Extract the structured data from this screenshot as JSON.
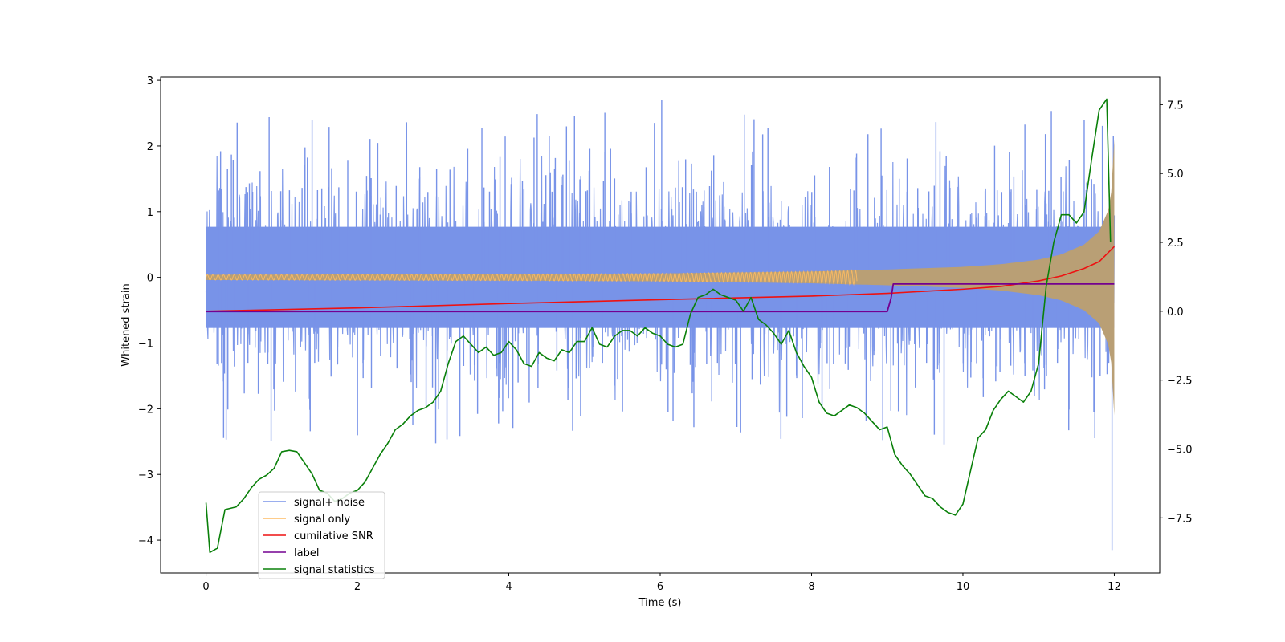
{
  "chart_data": {
    "type": "line",
    "title": "",
    "xlabel": "Time (s)",
    "ylabel": "Whitened strain",
    "ylabel_right": "",
    "xlim": [
      -0.6,
      12.6
    ],
    "ylim": [
      -4.5,
      3.05
    ],
    "ylim_right": [
      -9.5,
      8.5
    ],
    "x_ticks": [
      0,
      2,
      4,
      6,
      8,
      10,
      12
    ],
    "x_tick_labels": [
      "0",
      "2",
      "4",
      "6",
      "8",
      "10",
      "12"
    ],
    "y_ticks": [
      3,
      2,
      1,
      0,
      -1,
      -2,
      -3,
      -4
    ],
    "y_tick_labels": [
      "3",
      "2",
      "1",
      "0",
      "−1",
      "−2",
      "−3",
      "−4"
    ],
    "y2_ticks": [
      7.5,
      5.0,
      2.5,
      0.0,
      -2.5,
      -5.0,
      -7.5
    ],
    "y2_tick_labels": [
      "7.5",
      "5.0",
      "2.5",
      "0.0",
      "−2.5",
      "−5.0",
      "−7.5"
    ],
    "grid": false,
    "legend_position": "lower-left",
    "series": [
      {
        "name": "signal+ noise",
        "axis": "left",
        "style": "noise-band",
        "color": "#7893e8",
        "x_range": [
          0,
          12
        ],
        "typical_range": [
          -1.4,
          1.4
        ],
        "max": 2.7,
        "min": -4.15
      },
      {
        "name": "signal only",
        "axis": "left",
        "style": "chirp",
        "color": "#fdbb63",
        "blend_color": "#b99f75",
        "x_range": [
          0,
          12
        ],
        "envelope_x": [
          0,
          2,
          4,
          6,
          8,
          9,
          10,
          10.5,
          11,
          11.3,
          11.6,
          11.8,
          11.95,
          12
        ],
        "envelope_amp": [
          0.04,
          0.045,
          0.05,
          0.06,
          0.09,
          0.12,
          0.16,
          0.2,
          0.27,
          0.35,
          0.5,
          0.7,
          1.1,
          2.1
        ]
      },
      {
        "name": "cumilative SNR",
        "axis": "right",
        "color": "#ee1111",
        "x": [
          0,
          2,
          4,
          6,
          8,
          9,
          10,
          10.5,
          11,
          11.3,
          11.6,
          11.8,
          12
        ],
        "y": [
          0,
          0.12,
          0.28,
          0.42,
          0.55,
          0.65,
          0.8,
          0.9,
          1.1,
          1.28,
          1.55,
          1.8,
          2.35
        ]
      },
      {
        "name": "label",
        "axis": "left",
        "color": "#730090",
        "x": [
          0,
          9.0,
          9.05,
          9.08,
          12
        ],
        "y": [
          -0.52,
          -0.52,
          -0.32,
          -0.1,
          -0.1
        ]
      },
      {
        "name": "signal statistics",
        "axis": "right",
        "color": "#0a800a",
        "x": [
          0,
          0.05,
          0.15,
          0.25,
          0.4,
          0.5,
          0.6,
          0.7,
          0.8,
          0.9,
          1.0,
          1.1,
          1.2,
          1.3,
          1.4,
          1.5,
          1.6,
          1.7,
          1.8,
          1.9,
          2.0,
          2.1,
          2.2,
          2.3,
          2.4,
          2.5,
          2.6,
          2.7,
          2.8,
          2.9,
          3.0,
          3.1,
          3.2,
          3.3,
          3.4,
          3.5,
          3.6,
          3.7,
          3.8,
          3.9,
          4.0,
          4.1,
          4.2,
          4.3,
          4.4,
          4.5,
          4.6,
          4.7,
          4.8,
          4.9,
          5.0,
          5.1,
          5.2,
          5.3,
          5.4,
          5.5,
          5.6,
          5.7,
          5.8,
          5.9,
          6.0,
          6.1,
          6.2,
          6.3,
          6.4,
          6.5,
          6.6,
          6.7,
          6.8,
          6.9,
          7.0,
          7.1,
          7.2,
          7.3,
          7.4,
          7.5,
          7.6,
          7.7,
          7.8,
          7.9,
          8.0,
          8.1,
          8.2,
          8.3,
          8.4,
          8.5,
          8.6,
          8.7,
          8.8,
          8.9,
          9.0,
          9.1,
          9.2,
          9.3,
          9.4,
          9.5,
          9.6,
          9.7,
          9.8,
          9.9,
          10.0,
          10.1,
          10.2,
          10.3,
          10.4,
          10.5,
          10.6,
          10.7,
          10.8,
          10.9,
          11.0,
          11.1,
          11.2,
          11.3,
          11.4,
          11.5,
          11.6,
          11.7,
          11.8,
          11.9,
          11.95
        ],
        "y": [
          -6.95,
          -8.75,
          -8.6,
          -7.2,
          -7.1,
          -6.8,
          -6.4,
          -6.1,
          -5.95,
          -5.7,
          -5.1,
          -5.05,
          -5.1,
          -5.5,
          -5.9,
          -6.5,
          -6.6,
          -6.9,
          -6.8,
          -6.6,
          -6.5,
          -6.2,
          -5.7,
          -5.2,
          -4.8,
          -4.3,
          -4.1,
          -3.8,
          -3.6,
          -3.5,
          -3.3,
          -2.9,
          -1.9,
          -1.1,
          -0.9,
          -1.2,
          -1.5,
          -1.3,
          -1.6,
          -1.5,
          -1.1,
          -1.4,
          -1.9,
          -2.0,
          -1.5,
          -1.7,
          -1.8,
          -1.4,
          -1.5,
          -1.1,
          -1.1,
          -0.6,
          -1.2,
          -1.3,
          -0.9,
          -0.7,
          -0.7,
          -0.9,
          -0.6,
          -0.8,
          -0.9,
          -1.2,
          -1.3,
          -1.2,
          -0.1,
          0.5,
          0.6,
          0.8,
          0.6,
          0.5,
          0.4,
          0.0,
          0.5,
          -0.3,
          -0.5,
          -0.8,
          -1.2,
          -0.7,
          -1.5,
          -2.0,
          -2.4,
          -3.3,
          -3.7,
          -3.8,
          -3.6,
          -3.4,
          -3.5,
          -3.7,
          -4.0,
          -4.3,
          -4.2,
          -5.2,
          -5.6,
          -5.9,
          -6.3,
          -6.7,
          -6.8,
          -7.1,
          -7.3,
          -7.4,
          -7.0,
          -5.8,
          -4.6,
          -4.3,
          -3.6,
          -3.2,
          -2.9,
          -3.1,
          -3.3,
          -2.9,
          -1.9,
          0.9,
          2.5,
          3.5,
          3.5,
          3.2,
          3.6,
          5.5,
          7.3,
          7.7,
          2.5
        ]
      }
    ]
  }
}
